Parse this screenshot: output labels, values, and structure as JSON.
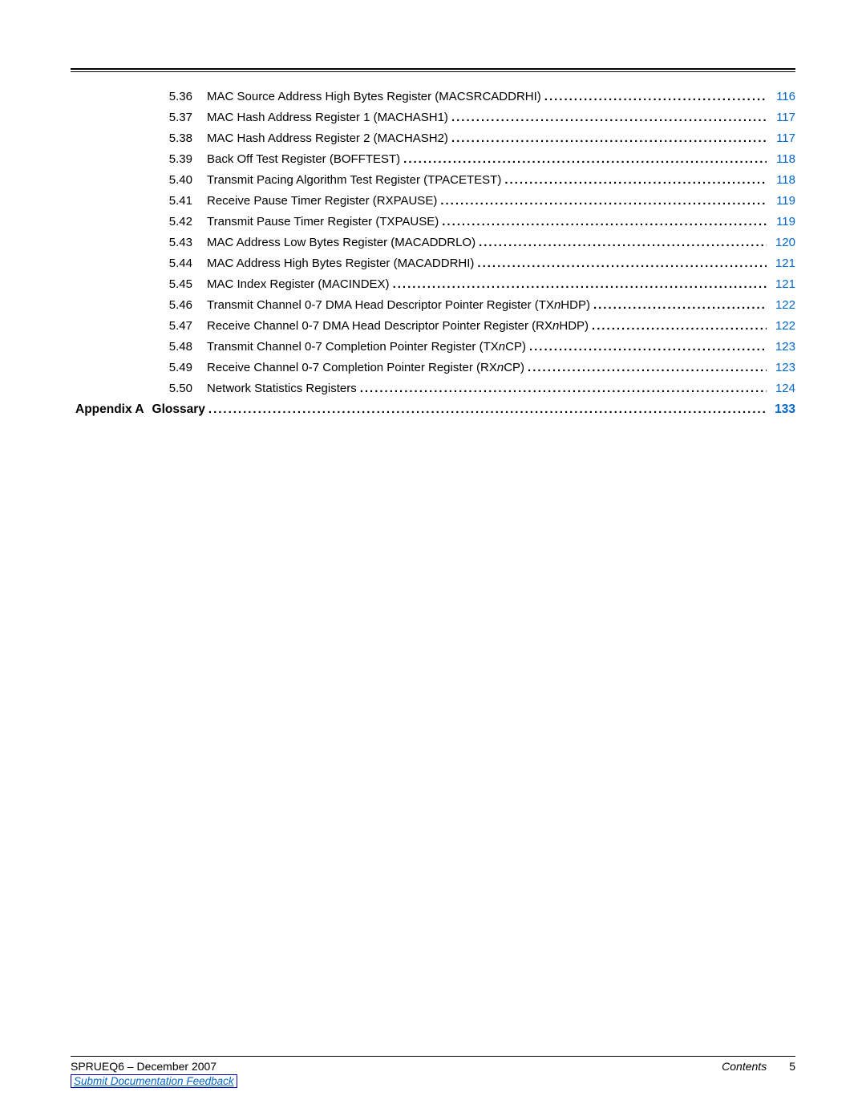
{
  "toc_entries": [
    {
      "num": "5.36",
      "title": "MAC Source Address High Bytes Register (MACSRCADDRHI)",
      "page": "116"
    },
    {
      "num": "5.37",
      "title": "MAC Hash Address Register 1 (MACHASH1)",
      "page": "117"
    },
    {
      "num": "5.38",
      "title": "MAC Hash Address Register 2 (MACHASH2)",
      "page": "117"
    },
    {
      "num": "5.39",
      "title": "Back Off Test Register (BOFFTEST)",
      "page": "118"
    },
    {
      "num": "5.40",
      "title": "Transmit Pacing Algorithm Test Register (TPACETEST)",
      "page": "118"
    },
    {
      "num": "5.41",
      "title": "Receive Pause Timer Register (RXPAUSE)",
      "page": "119"
    },
    {
      "num": "5.42",
      "title": "Transmit Pause Timer Register (TXPAUSE)",
      "page": "119"
    },
    {
      "num": "5.43",
      "title": "MAC Address Low Bytes Register (MACADDRLO)",
      "page": "120"
    },
    {
      "num": "5.44",
      "title": "MAC Address High Bytes Register (MACADDRHI)",
      "page": "121"
    },
    {
      "num": "5.45",
      "title": "MAC Index Register (MACINDEX)",
      "page": "121"
    },
    {
      "num": "5.46",
      "title_html": "Transmit Channel 0-7 DMA Head Descriptor Pointer Register (TX<span class=\"italic\">n</span>HDP)",
      "page": "122"
    },
    {
      "num": "5.47",
      "title_html": "Receive Channel 0-7 DMA Head Descriptor Pointer Register (RX<span class=\"italic\">n</span>HDP)",
      "page": "122"
    },
    {
      "num": "5.48",
      "title_html": "Transmit Channel 0-7 Completion Pointer Register (TX<span class=\"italic\">n</span>CP)",
      "page": "123"
    },
    {
      "num": "5.49",
      "title_html": "Receive Channel 0-7 Completion Pointer Register (RX<span class=\"italic\">n</span>CP)",
      "page": "123"
    },
    {
      "num": "5.50",
      "title": "Network Statistics Registers",
      "page": "124"
    }
  ],
  "appendix": {
    "label": "Appendix A",
    "title": "Glossary",
    "page": "133"
  },
  "footer": {
    "docid": "SPRUEQ6 – December 2007",
    "section": "Contents",
    "pagenum": "5",
    "link": "Submit Documentation Feedback"
  },
  "colors": {
    "link": "#0066cc",
    "text": "#000000",
    "background": "#ffffff"
  }
}
